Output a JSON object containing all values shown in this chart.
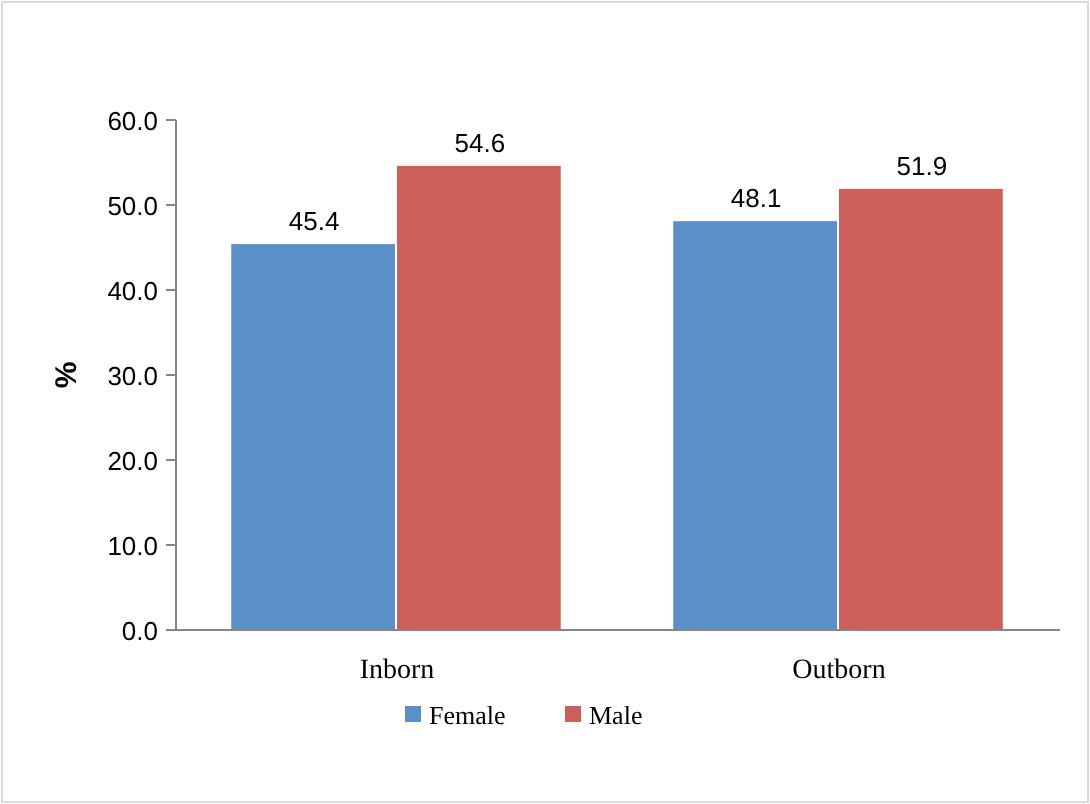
{
  "chart_data": {
    "type": "bar",
    "ylabel": "%",
    "categories": [
      "Inborn",
      "Outborn"
    ],
    "series": [
      {
        "name": "Female",
        "color": "#5b8fc8",
        "values": [
          45.4,
          48.1
        ]
      },
      {
        "name": "Male",
        "color": "#cd5f5a",
        "values": [
          54.6,
          51.9
        ]
      }
    ],
    "ylim": [
      0,
      60
    ],
    "yticks": [
      {
        "value": 0,
        "label": "0.0"
      },
      {
        "value": 10,
        "label": "10.0"
      },
      {
        "value": 20,
        "label": "20.0"
      },
      {
        "value": 30,
        "label": "30.0"
      },
      {
        "value": 40,
        "label": "40.0"
      },
      {
        "value": 50,
        "label": "50.0"
      },
      {
        "value": 60,
        "label": "60.0"
      }
    ],
    "data_labels": true,
    "legend": "bottom",
    "grid": false
  }
}
